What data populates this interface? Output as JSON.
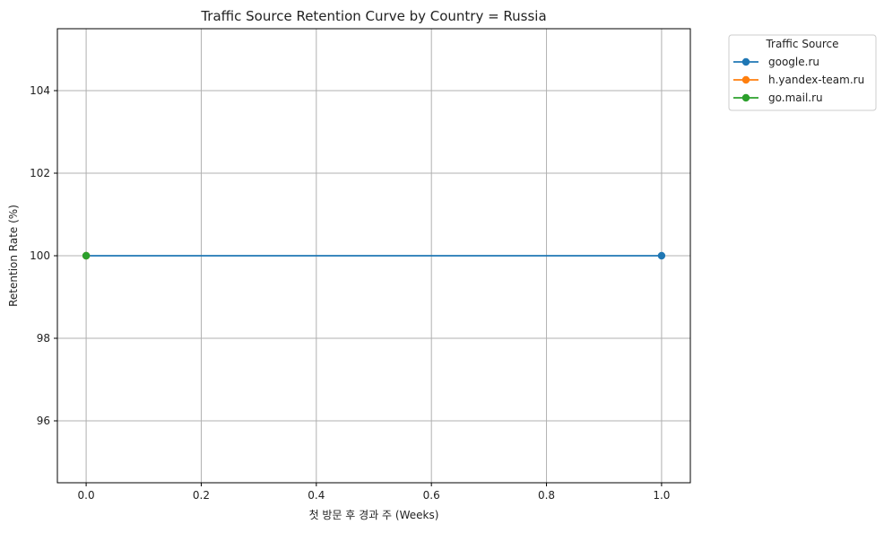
{
  "chart_data": {
    "type": "line",
    "title": "Traffic Source Retention Curve by Country = Russia",
    "xlabel": "첫 방문 후 경과 주 (Weeks)",
    "ylabel": "Retention Rate (%)",
    "xlim": [
      -0.05,
      1.05
    ],
    "ylim": [
      94.5,
      105.5
    ],
    "xticks": [
      0.0,
      0.2,
      0.4,
      0.6,
      0.8,
      1.0
    ],
    "xtick_labels": [
      "0.0",
      "0.2",
      "0.4",
      "0.6",
      "0.8",
      "1.0"
    ],
    "yticks": [
      96,
      98,
      100,
      102,
      104
    ],
    "ytick_labels": [
      "96",
      "98",
      "100",
      "102",
      "104"
    ],
    "grid": true,
    "legend": {
      "title": "Traffic Source",
      "placement": "outside-top-right"
    },
    "series": [
      {
        "name": "google.ru",
        "color": "#1f77b4",
        "x": [
          0,
          1
        ],
        "y": [
          100,
          100
        ]
      },
      {
        "name": "h.yandex-team.ru",
        "color": "#ff7f0e",
        "x": [
          0
        ],
        "y": [
          100
        ]
      },
      {
        "name": "go.mail.ru",
        "color": "#2ca02c",
        "x": [
          0
        ],
        "y": [
          100
        ]
      }
    ]
  }
}
